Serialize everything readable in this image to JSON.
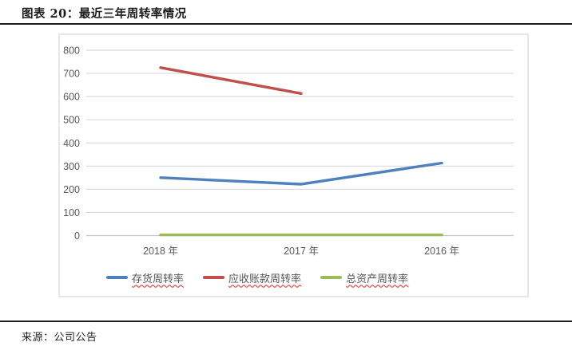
{
  "header": {
    "title": "图表 20：最近三年周转率情况"
  },
  "footer": {
    "source": "来源：公司公告"
  },
  "chart_data": {
    "type": "line",
    "title": "最近三年周转率情况",
    "categories": [
      "2018 年",
      "2017 年",
      "2016 年"
    ],
    "series": [
      {
        "name": "存货周转率",
        "color": "#4F81BD",
        "values": [
          250,
          222,
          313
        ]
      },
      {
        "name": "应收账款周转率",
        "color": "#C0504D",
        "values": [
          725,
          613,
          null
        ]
      },
      {
        "name": "总资产周转率",
        "color": "#9BBB59",
        "values": [
          3,
          3,
          3
        ]
      }
    ],
    "ylim": [
      0,
      800
    ],
    "yticks": [
      0,
      100,
      200,
      300,
      400,
      500,
      600,
      700,
      800
    ],
    "xlabel": "",
    "ylabel": "",
    "grid": true,
    "legend_position": "bottom",
    "colors": {
      "gridline": "#dadada",
      "axis_line": "#c3c3c3",
      "tick_label": "#595959",
      "panel_border": "#e6e6e6"
    }
  }
}
